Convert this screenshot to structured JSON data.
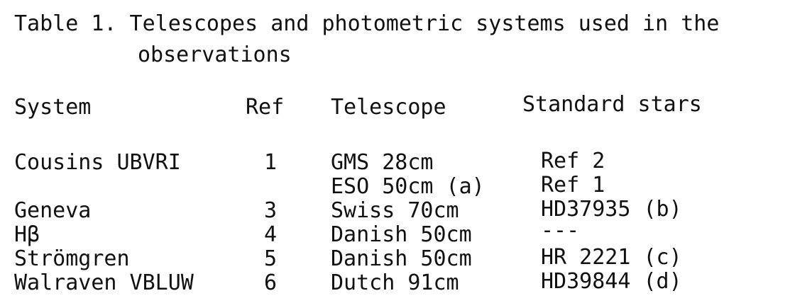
{
  "table": {
    "caption_line1": "Table 1. Telescopes and photometric systems used in the",
    "caption_line2": "observations",
    "headers": {
      "system": "System",
      "ref": "Ref",
      "telescope": "Telescope",
      "standard_stars": "Standard stars"
    },
    "rows": [
      {
        "system": "Cousins UBVRI",
        "ref": "1",
        "telescope": "GMS 28cm",
        "standard": "Ref 2"
      },
      {
        "system": "",
        "ref": "",
        "telescope": "ESO 50cm (a)",
        "standard": "Ref 1"
      },
      {
        "system": "Geneva",
        "ref": "3",
        "telescope": "Swiss 70cm",
        "standard": "HD37935 (b)"
      },
      {
        "system": "Hβ",
        "ref": "4",
        "telescope": "Danish 50cm",
        "standard": "---"
      },
      {
        "system": "Strömgren",
        "ref": "5",
        "telescope": "Danish 50cm",
        "standard": "HR 2221 (c)"
      },
      {
        "system": "Walraven VBLUW",
        "ref": "6",
        "telescope": "Dutch 91cm",
        "standard": "HD39844 (d)"
      }
    ]
  }
}
